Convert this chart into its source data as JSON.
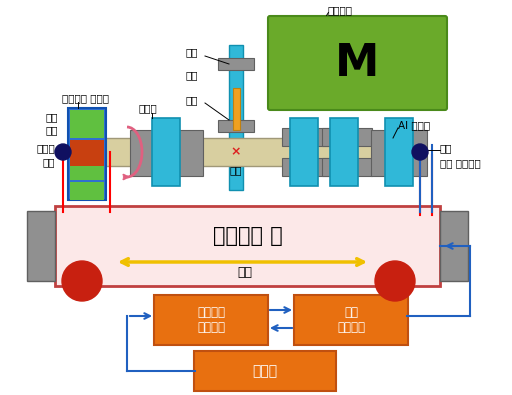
{
  "bg_color": "#ffffff",
  "motor_color": "#6aaa2a",
  "motor_label": "M",
  "alum_color": "#fce8e8",
  "alum_label": "알루미는 판",
  "vibration_label": "진동",
  "slide_label": "슬라이드\n콘트롤러",
  "move_label": "이동\n콘트롤러",
  "computer_label": "컴퓨터",
  "orange_color": "#e87010",
  "teal_color": "#30b8d8",
  "gray_color": "#909090",
  "shaft_color": "#d8cfa0",
  "blue_color": "#2060c0",
  "labels": {
    "motor": "회전모터",
    "pulley1": "풀리",
    "belt": "벌트",
    "pulley2": "풀리",
    "bearing": "베어링",
    "structure": "구조",
    "al_shaft": "Al 중공축",
    "roller": "롤러",
    "electric_slide": "전기 슬라이드",
    "plastic": "블라스틱 주측대",
    "magnet": "자석",
    "pole": "자극",
    "abrasive": "언마재",
    "material": "소재"
  }
}
